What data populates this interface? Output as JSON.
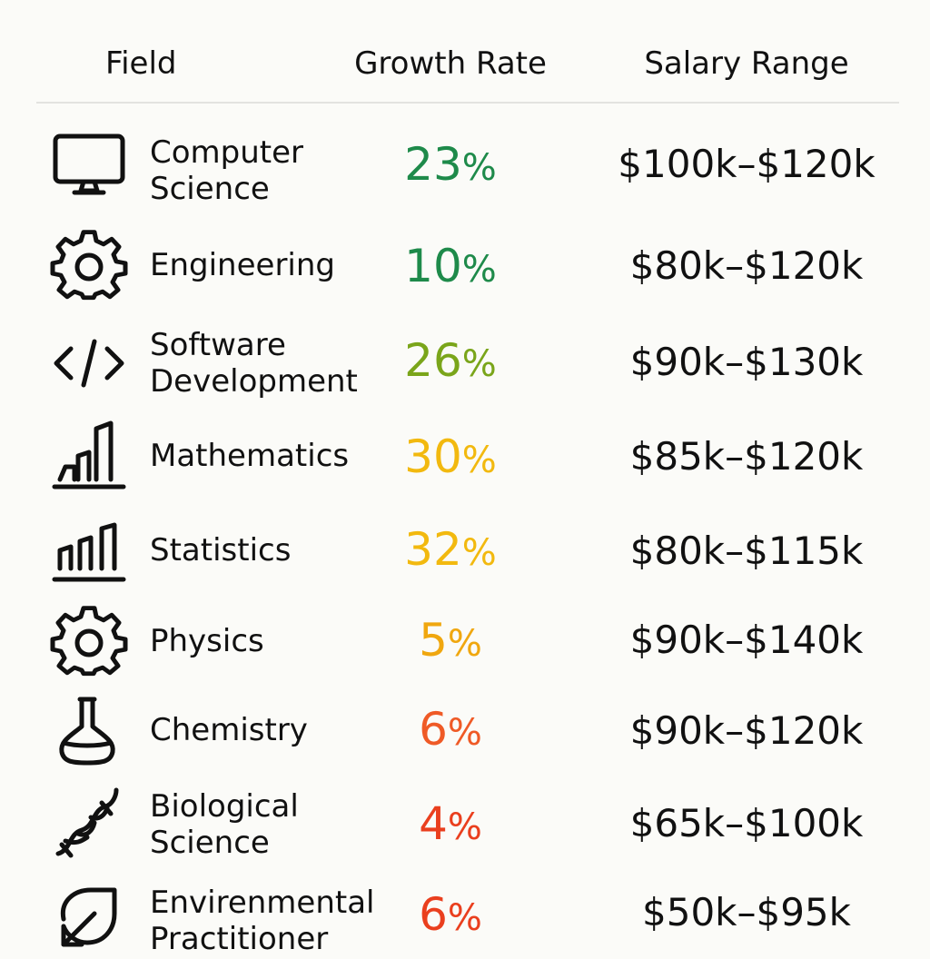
{
  "header": {
    "field": "Field",
    "growth": "Growth Rate",
    "salary": "Salary Range"
  },
  "rows": [
    {
      "icon": "monitor-icon",
      "field_lines": [
        "Computer",
        "Science"
      ],
      "growth": "23",
      "pct": "%",
      "color": "#1e8a4a",
      "salary": "$100k–$120k"
    },
    {
      "icon": "gear-icon",
      "field_lines": [
        "Engineering"
      ],
      "growth": "10",
      "pct": "%",
      "color": "#1e8a4a",
      "salary": "$80k–$120k"
    },
    {
      "icon": "code-icon",
      "field_lines": [
        "Software",
        "Development"
      ],
      "growth": "26",
      "pct": "%",
      "color": "#7aa51a",
      "salary": "$90k–$130k"
    },
    {
      "icon": "bar-chart-icon",
      "field_lines": [
        "Mathematics"
      ],
      "growth": "30",
      "pct": "%",
      "color": "#f2b90f",
      "salary": "$85k–$120k"
    },
    {
      "icon": "bar-chart-icon",
      "field_lines": [
        "Statistics"
      ],
      "growth": "32",
      "pct": "%",
      "color": "#f2b90f",
      "salary": "$80k–$115k"
    },
    {
      "icon": "gear-icon",
      "field_lines": [
        "Physics"
      ],
      "growth": "5",
      "pct": "%",
      "color": "#f0a70f",
      "salary": "$90k–$140k"
    },
    {
      "icon": "flask-icon",
      "field_lines": [
        "Chemistry"
      ],
      "growth": "6",
      "pct": "%",
      "color": "#ef5a26",
      "salary": "$90k–$120k"
    },
    {
      "icon": "dna-icon",
      "field_lines": [
        "Biological",
        "Science"
      ],
      "growth": "4",
      "pct": "%",
      "color": "#ea3f1e",
      "salary": "$65k–$100k"
    },
    {
      "icon": "leaf-icon",
      "field_lines": [
        "Envirenmental",
        "Practitioner"
      ],
      "growth": "6",
      "pct": "%",
      "color": "#ea3f1e",
      "salary": "$50k–$95k"
    }
  ]
}
